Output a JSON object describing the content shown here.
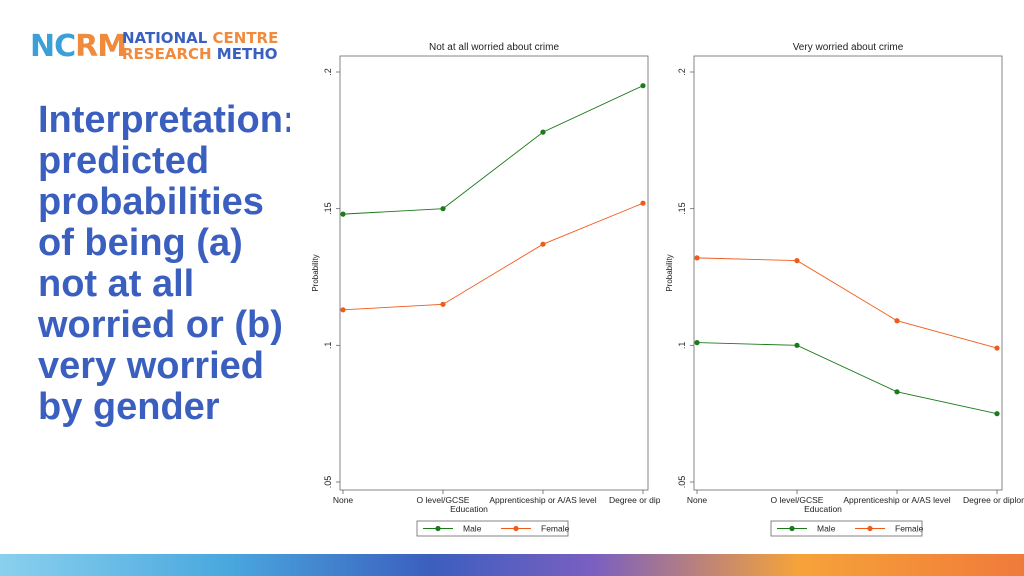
{
  "logo": {
    "mark_a": "NC",
    "mark_b": "RM",
    "line1_a": "NATIONAL ",
    "line1_b": "CENTRE",
    "line2_a": "RESEARCH ",
    "line2_b": "METHO"
  },
  "headline": "Interpretation: predicted probabilities of being (a) not at all worried or (b) very worried by gender",
  "colors": {
    "male": "#1b7a1b",
    "female": "#f05a1a",
    "headline": "#3b5fbf"
  },
  "chart_data": [
    {
      "type": "line",
      "title": "Not at all worried about crime",
      "xlabel": "Education",
      "ylabel": "Probability",
      "categories": [
        "None",
        "O level/GCSE",
        "Apprenticeship or A/AS level",
        "Degree or dip"
      ],
      "ylim": [
        0.05,
        0.2
      ],
      "yticks": [
        ".05",
        ".1",
        ".15",
        ".2"
      ],
      "ytick_values": [
        0.05,
        0.1,
        0.15,
        0.2
      ],
      "legend": "bottom",
      "series": [
        {
          "name": "Male",
          "color": "#1b7a1b",
          "values": [
            0.148,
            0.15,
            0.178,
            0.195
          ]
        },
        {
          "name": "Female",
          "color": "#f05a1a",
          "values": [
            0.113,
            0.115,
            0.137,
            0.152
          ]
        }
      ]
    },
    {
      "type": "line",
      "title": "Very worried about crime",
      "xlabel": "Education",
      "ylabel": "Probability",
      "categories": [
        "None",
        "O level/GCSE",
        "Apprenticeship or A/AS level",
        "Degree or diplom"
      ],
      "ylim": [
        0.05,
        0.2
      ],
      "yticks": [
        ".05",
        ".1",
        ".15",
        ".2"
      ],
      "ytick_values": [
        0.05,
        0.1,
        0.15,
        0.2
      ],
      "legend": "bottom",
      "series": [
        {
          "name": "Male",
          "color": "#1b7a1b",
          "values": [
            0.101,
            0.1,
            0.083,
            0.075
          ]
        },
        {
          "name": "Female",
          "color": "#f05a1a",
          "values": [
            0.132,
            0.131,
            0.109,
            0.099
          ]
        }
      ]
    }
  ]
}
